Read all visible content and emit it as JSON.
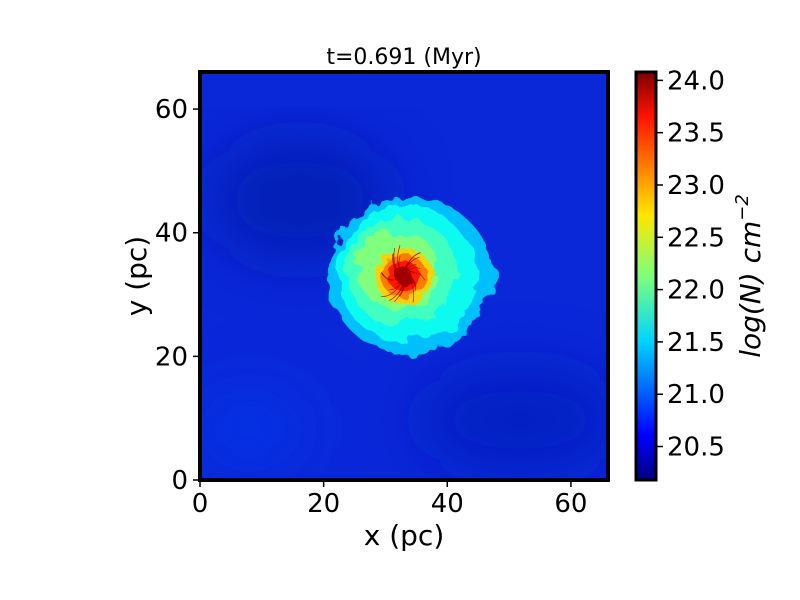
{
  "chart_data": {
    "type": "heatmap",
    "title": "t=0.691 (Myr)",
    "xlabel": "x (pc)",
    "ylabel": "y (pc)",
    "xlim": [
      0,
      66
    ],
    "ylim": [
      0,
      66
    ],
    "x_ticks": [
      0,
      20,
      40,
      60
    ],
    "y_ticks": [
      0,
      20,
      40,
      60
    ],
    "colorbar": {
      "label": "log(N) cm",
      "label_exponent": "−2",
      "range": [
        20.18,
        24.08
      ],
      "ticks": [
        20.5,
        21.0,
        21.5,
        22.0,
        22.5,
        23.0,
        23.5,
        24.0
      ],
      "tick_labels": [
        "20.5",
        "21.0",
        "21.5",
        "22.0",
        "22.5",
        "23.0",
        "23.5",
        "24.0"
      ],
      "colormap": "jet"
    },
    "features": {
      "background_level": 20.6,
      "cloud": {
        "center": [
          34,
          33
        ],
        "radius": 13,
        "level": 21.9
      },
      "core": {
        "center": [
          33,
          33
        ],
        "radius": 4.5,
        "peak": 24.0
      }
    },
    "grid": false,
    "legend": "none"
  }
}
